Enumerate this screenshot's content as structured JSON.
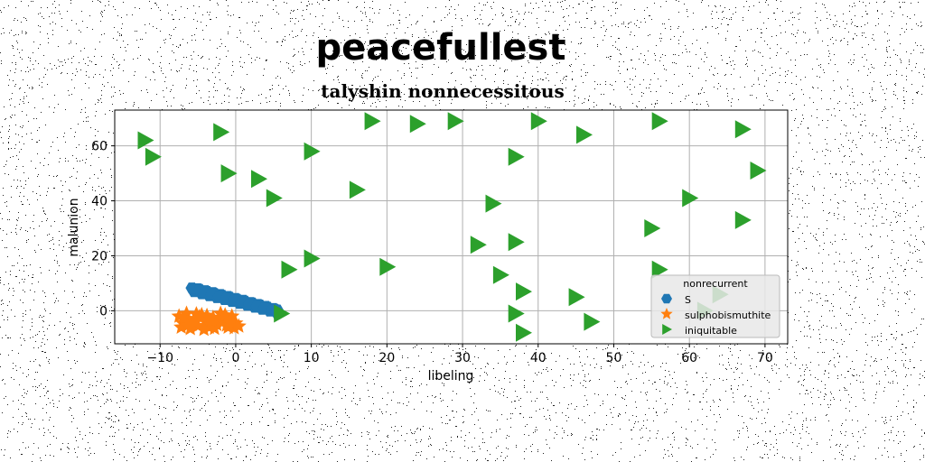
{
  "chart_data": {
    "type": "scatter",
    "suptitle": "peacefullest",
    "title": "talyshin nonnecessitous",
    "xlabel": "libeling",
    "ylabel": "malunion",
    "xlim": [
      -16,
      73
    ],
    "ylim": [
      -12,
      73
    ],
    "xticks": [
      -10,
      0,
      10,
      20,
      30,
      40,
      50,
      60,
      70
    ],
    "yticks": [
      0,
      20,
      40,
      60
    ],
    "grid": true,
    "legend": {
      "title": "nonrecurrent",
      "placement": "lower-right"
    },
    "series": [
      {
        "name": "S",
        "marker": "hexagon",
        "color": "#1f77b4",
        "points": [
          [
            -5.0,
            8.0
          ],
          [
            -4.0,
            7.3
          ],
          [
            -3.0,
            6.6
          ],
          [
            -2.0,
            5.9
          ],
          [
            -1.0,
            5.2
          ],
          [
            0.0,
            4.5
          ],
          [
            1.0,
            3.8
          ],
          [
            2.0,
            3.0
          ],
          [
            3.0,
            2.3
          ],
          [
            4.0,
            1.6
          ],
          [
            5.0,
            0.8
          ],
          [
            5.5,
            0.3
          ],
          [
            -5.5,
            7.0
          ],
          [
            -4.5,
            6.2
          ],
          [
            -3.5,
            5.5
          ],
          [
            -2.5,
            4.8
          ],
          [
            -1.5,
            4.1
          ],
          [
            -0.5,
            3.4
          ],
          [
            0.5,
            2.7
          ],
          [
            1.5,
            2.0
          ],
          [
            2.5,
            1.3
          ],
          [
            3.5,
            0.6
          ],
          [
            4.5,
            -0.1
          ],
          [
            5.5,
            -1.0
          ],
          [
            -5.8,
            8.3
          ],
          [
            -4.8,
            7.8
          ],
          [
            -3.8,
            7.0
          ],
          [
            -2.8,
            6.3
          ],
          [
            -1.8,
            5.6
          ],
          [
            -0.8,
            4.9
          ],
          [
            0.2,
            4.2
          ],
          [
            1.2,
            3.5
          ],
          [
            2.2,
            2.8
          ],
          [
            3.2,
            2.1
          ],
          [
            4.2,
            1.3
          ],
          [
            5.2,
            0.5
          ],
          [
            -4.2,
            6.5
          ],
          [
            -3.2,
            6.0
          ],
          [
            -2.2,
            5.3
          ],
          [
            -1.2,
            4.6
          ],
          [
            -0.2,
            3.9
          ],
          [
            0.8,
            3.1
          ],
          [
            1.8,
            2.4
          ],
          [
            2.8,
            1.7
          ],
          [
            3.8,
            1.0
          ],
          [
            4.8,
            0.2
          ]
        ]
      },
      {
        "name": "sulphobismuthite",
        "marker": "star",
        "color": "#ff7f0e",
        "points": [
          [
            -7.5,
            -2.0
          ],
          [
            -7.0,
            -4.5
          ],
          [
            -6.5,
            -1.0
          ],
          [
            -6.0,
            -6.5
          ],
          [
            -5.5,
            -3.0
          ],
          [
            -5.0,
            -5.5
          ],
          [
            -4.5,
            -1.5
          ],
          [
            -4.0,
            -4.0
          ],
          [
            -3.5,
            -6.0
          ],
          [
            -3.0,
            -2.5
          ],
          [
            -2.5,
            -5.0
          ],
          [
            -2.0,
            -1.0
          ],
          [
            -1.5,
            -3.5
          ],
          [
            -1.0,
            -6.0
          ],
          [
            -0.5,
            -2.0
          ],
          [
            0.0,
            -4.5
          ],
          [
            -7.2,
            -6.0
          ],
          [
            -6.2,
            -3.8
          ],
          [
            -5.2,
            -1.2
          ],
          [
            -4.2,
            -6.8
          ],
          [
            -3.2,
            -4.8
          ],
          [
            -2.2,
            -3.0
          ],
          [
            -1.2,
            -5.2
          ],
          [
            -0.2,
            -6.2
          ],
          [
            -6.8,
            -2.8
          ],
          [
            -5.8,
            -5.0
          ],
          [
            -4.8,
            -2.2
          ],
          [
            -3.8,
            -1.8
          ],
          [
            -2.8,
            -6.4
          ],
          [
            -1.8,
            -2.4
          ],
          [
            -0.8,
            -4.0
          ],
          [
            0.4,
            -5.6
          ],
          [
            -5.4,
            -4.2
          ],
          [
            -3.4,
            -3.4
          ],
          [
            -1.4,
            -1.6
          ],
          [
            -6.4,
            -5.4
          ]
        ]
      },
      {
        "name": "iniquitable",
        "marker": "triangle-right",
        "color": "#2ca02c",
        "points": [
          [
            -12,
            62
          ],
          [
            -11,
            56
          ],
          [
            -2,
            65
          ],
          [
            -1,
            50
          ],
          [
            3,
            48
          ],
          [
            5,
            41
          ],
          [
            10,
            58
          ],
          [
            16,
            44
          ],
          [
            18,
            69
          ],
          [
            24,
            68
          ],
          [
            29,
            69
          ],
          [
            40,
            69
          ],
          [
            46,
            64
          ],
          [
            56,
            69
          ],
          [
            67,
            66
          ],
          [
            69,
            51
          ],
          [
            37,
            56
          ],
          [
            34,
            39
          ],
          [
            60,
            41
          ],
          [
            67,
            33
          ],
          [
            55,
            30
          ],
          [
            32,
            24
          ],
          [
            37,
            25
          ],
          [
            20,
            16
          ],
          [
            7,
            15
          ],
          [
            10,
            19
          ],
          [
            35,
            13
          ],
          [
            56,
            15
          ],
          [
            38,
            7
          ],
          [
            45,
            5
          ],
          [
            64,
            6
          ],
          [
            6,
            -1
          ],
          [
            37,
            -1
          ],
          [
            47,
            -4
          ],
          [
            38,
            -8
          ],
          [
            62,
            0
          ]
        ]
      }
    ]
  }
}
